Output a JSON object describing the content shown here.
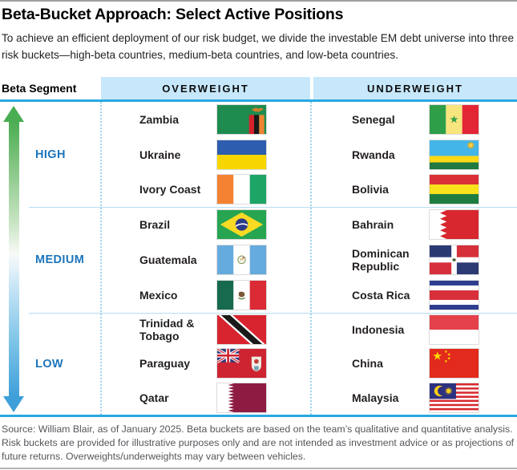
{
  "header": {
    "title": "Beta-Bucket Approach: Select Active Positions",
    "subtitle": "To achieve an efficient deployment of our risk budget, we divide the investable EM debt universe into three risk buckets—high-beta countries, medium-beta countries, and low-beta countries."
  },
  "table": {
    "segment_column_header": "Beta Segment",
    "overweight_header": "OVERWEIGHT",
    "underweight_header": "UNDERWEIGHT",
    "segments": [
      {
        "label": "HIGH",
        "overweight": [
          {
            "name": "Zambia",
            "flag": "zambia-flag"
          },
          {
            "name": "Ukraine",
            "flag": "ukraine-flag"
          },
          {
            "name": "Ivory Coast",
            "flag": "ivory-coast-flag"
          }
        ],
        "underweight": [
          {
            "name": "Senegal",
            "flag": "senegal-flag"
          },
          {
            "name": "Rwanda",
            "flag": "rwanda-flag"
          },
          {
            "name": "Bolivia",
            "flag": "bolivia-flag"
          }
        ]
      },
      {
        "label": "MEDIUM",
        "overweight": [
          {
            "name": "Brazil",
            "flag": "brazil-flag"
          },
          {
            "name": "Guatemala",
            "flag": "guatemala-flag"
          },
          {
            "name": "Mexico",
            "flag": "mexico-flag"
          }
        ],
        "underweight": [
          {
            "name": "Bahrain",
            "flag": "bahrain-flag"
          },
          {
            "name": "Dominican Republic",
            "flag": "dominican-republic-flag"
          },
          {
            "name": "Costa Rica",
            "flag": "costa-rica-flag"
          }
        ]
      },
      {
        "label": "LOW",
        "overweight": [
          {
            "name": "Trinidad & Tobago",
            "flag": "trinidad-tobago-flag"
          },
          {
            "name": "Paraguay",
            "flag": "paraguay-flag"
          },
          {
            "name": "Qatar",
            "flag": "qatar-flag"
          }
        ],
        "underweight": [
          {
            "name": "Indonesia",
            "flag": "indonesia-flag"
          },
          {
            "name": "China",
            "flag": "china-flag"
          },
          {
            "name": "Malaysia",
            "flag": "malaysia-flag"
          }
        ]
      }
    ]
  },
  "footnote": "Source: William Blair, as of January 2025. Beta buckets are based on the team’s qualitative and quantitative analysis. Risk buckets are provided for illustrative purposes only and are not intended as investment advice or as projections of future returns. Overweights/underweights may vary between vehicles.",
  "colors": {
    "header_fill": "#c7e8fa",
    "rule_blue": "#29a9e1",
    "dotted_line": "#9fd4f0",
    "segment_line": "#b8ddf2",
    "segment_label_blue": "#1c75bc",
    "arrow_green": "#4aad52",
    "arrow_blue": "#3f9fd9",
    "text_black": "#231f20",
    "footnote_gray": "#54565a"
  },
  "chart_data": {
    "type": "table",
    "title": "Beta-Bucket Approach: Select Active Positions",
    "columns": [
      "Beta Segment",
      "OVERWEIGHT",
      "UNDERWEIGHT"
    ],
    "rows": [
      {
        "beta_segment": "HIGH",
        "overweight": [
          "Zambia",
          "Ukraine",
          "Ivory Coast"
        ],
        "underweight": [
          "Senegal",
          "Rwanda",
          "Bolivia"
        ]
      },
      {
        "beta_segment": "MEDIUM",
        "overweight": [
          "Brazil",
          "Guatemala",
          "Mexico"
        ],
        "underweight": [
          "Bahrain",
          "Dominican Republic",
          "Costa Rica"
        ]
      },
      {
        "beta_segment": "LOW",
        "overweight": [
          "Trinidad & Tobago",
          "Paraguay",
          "Qatar"
        ],
        "underweight": [
          "Indonesia",
          "China",
          "Malaysia"
        ]
      }
    ],
    "layout_hints": {
      "axis": "beta level, high at top to low at bottom, shown by green-to-blue double arrow",
      "legend_position": "none",
      "grid": "light blue separators"
    }
  }
}
